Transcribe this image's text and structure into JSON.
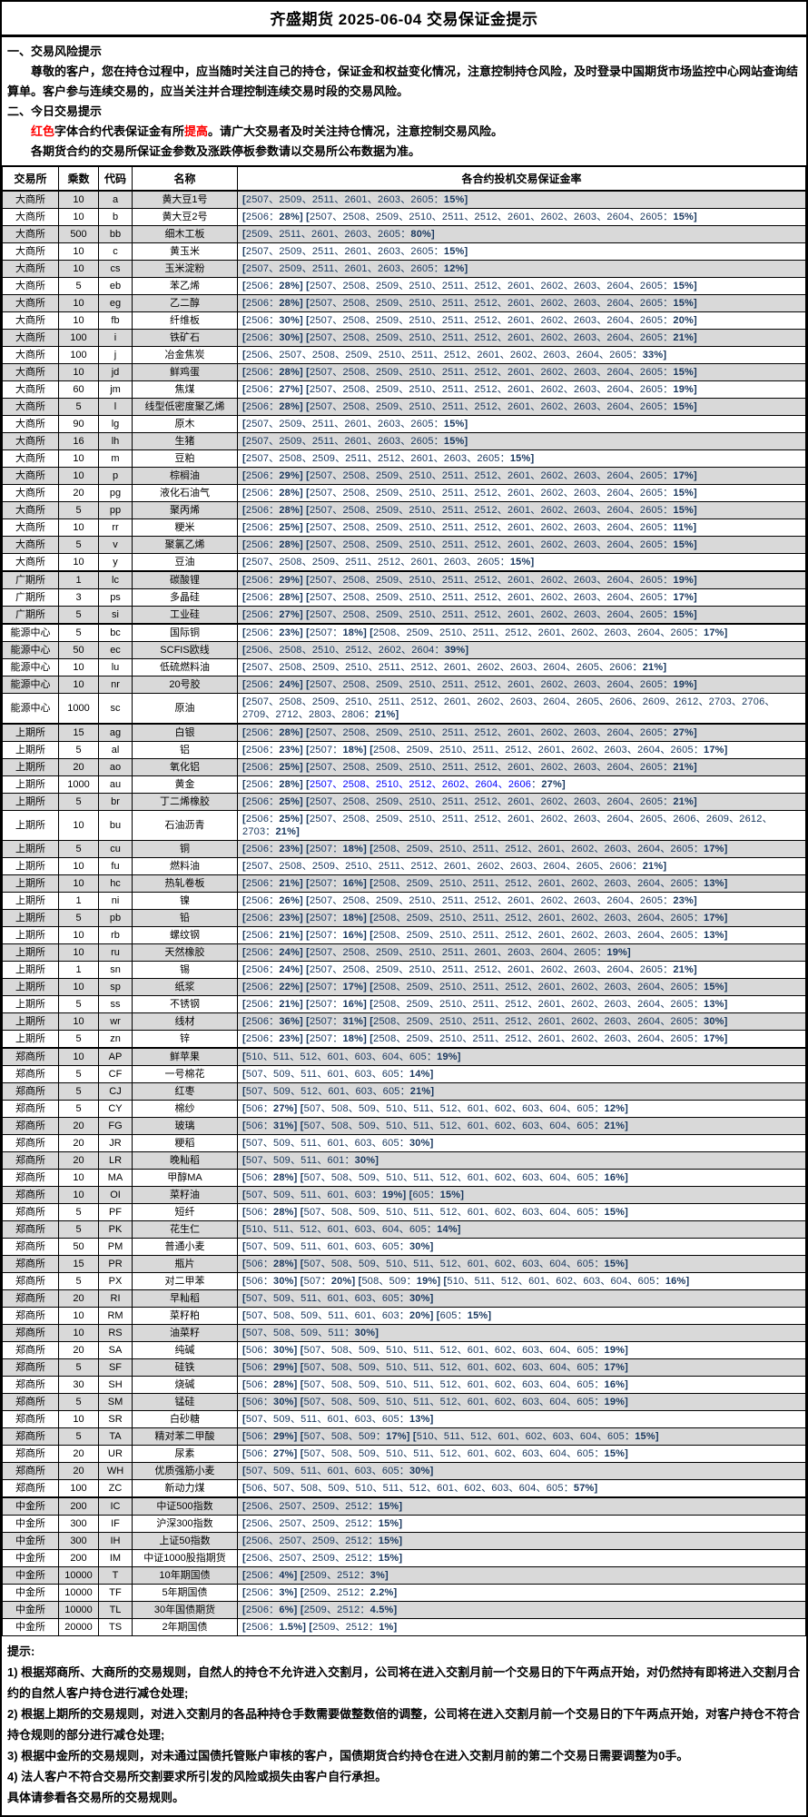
{
  "title": "齐盛期货 2025-06-04 交易保证金提示",
  "colors": {
    "navy": "#17365D",
    "red": "#FF0000",
    "blue": "#0000FF",
    "row_alt": "#D9D9D9"
  },
  "section1": {
    "heading": "一、交易风险提示",
    "body": "尊敬的客户，您在持仓过程中，应当随时关注自己的持仓，保证金和权益变化情况，注意控制持仓风险，及时登录中国期货市场监控中心网站查询结算单。客户参与连续交易的，应当关注并合理控制连续交易时段的交易风险。"
  },
  "section2": {
    "heading": "二、今日交易提示",
    "line1_segments": [
      {
        "t": "红色",
        "red": true
      },
      {
        "t": "字体合约代表保证金有所",
        "red": false
      },
      {
        "t": "提高",
        "red": true
      },
      {
        "t": "。请广大交易者及时关注持仓情况，注意控制交易风险。",
        "red": false
      }
    ],
    "line2": "各期货合约的交易所保证金参数及涨跌停板参数请以交易所公布数据为准。"
  },
  "table": {
    "headers": [
      "交易所",
      "乘数",
      "代码",
      "名称",
      "各合约投机交易保证金率"
    ],
    "rows": [
      {
        "ex": "大商所",
        "mult": "10",
        "code": "a",
        "name": "黄大豆1号",
        "rate": "[2507、2509、2511、2601、2603、2605：15%]"
      },
      {
        "ex": "大商所",
        "mult": "10",
        "code": "b",
        "name": "黄大豆2号",
        "rate": "[2506：28%]  [2507、2508、2509、2510、2511、2512、2601、2602、2603、2604、2605：15%]"
      },
      {
        "ex": "大商所",
        "mult": "500",
        "code": "bb",
        "name": "细木工板",
        "rate": "[2509、2511、2601、2603、2605：80%]"
      },
      {
        "ex": "大商所",
        "mult": "10",
        "code": "c",
        "name": "黄玉米",
        "rate": "[2507、2509、2511、2601、2603、2605：15%]"
      },
      {
        "ex": "大商所",
        "mult": "10",
        "code": "cs",
        "name": "玉米淀粉",
        "rate": "[2507、2509、2511、2601、2603、2605：12%]"
      },
      {
        "ex": "大商所",
        "mult": "5",
        "code": "eb",
        "name": "苯乙烯",
        "rate": "[2506：28%]  [2507、2508、2509、2510、2511、2512、2601、2602、2603、2604、2605：15%]"
      },
      {
        "ex": "大商所",
        "mult": "10",
        "code": "eg",
        "name": "乙二醇",
        "rate": "[2506：28%]  [2507、2508、2509、2510、2511、2512、2601、2602、2603、2604、2605：15%]"
      },
      {
        "ex": "大商所",
        "mult": "10",
        "code": "fb",
        "name": "纤维板",
        "rate": "[2506：30%]  [2507、2508、2509、2510、2511、2512、2601、2602、2603、2604、2605：20%]"
      },
      {
        "ex": "大商所",
        "mult": "100",
        "code": "i",
        "name": "铁矿石",
        "rate": "[2506：30%]  [2507、2508、2509、2510、2511、2512、2601、2602、2603、2604、2605：21%]"
      },
      {
        "ex": "大商所",
        "mult": "100",
        "code": "j",
        "name": "冶金焦炭",
        "rate": "[2506、2507、2508、2509、2510、2511、2512、2601、2602、2603、2604、2605：33%]"
      },
      {
        "ex": "大商所",
        "mult": "10",
        "code": "jd",
        "name": "鲜鸡蛋",
        "rate": "[2506：28%]  [2507、2508、2509、2510、2511、2512、2601、2602、2603、2604、2605：15%]"
      },
      {
        "ex": "大商所",
        "mult": "60",
        "code": "jm",
        "name": "焦煤",
        "rate": "[2506：27%]  [2507、2508、2509、2510、2511、2512、2601、2602、2603、2604、2605：19%]"
      },
      {
        "ex": "大商所",
        "mult": "5",
        "code": "l",
        "name": "线型低密度聚乙烯",
        "rate": "[2506：28%]  [2507、2508、2509、2510、2511、2512、2601、2602、2603、2604、2605：15%]"
      },
      {
        "ex": "大商所",
        "mult": "90",
        "code": "lg",
        "name": "原木",
        "rate": "[2507、2509、2511、2601、2603、2605：15%]"
      },
      {
        "ex": "大商所",
        "mult": "16",
        "code": "lh",
        "name": "生猪",
        "rate": "[2507、2509、2511、2601、2603、2605：15%]"
      },
      {
        "ex": "大商所",
        "mult": "10",
        "code": "m",
        "name": "豆粕",
        "rate": "[2507、2508、2509、2511、2512、2601、2603、2605：15%]"
      },
      {
        "ex": "大商所",
        "mult": "10",
        "code": "p",
        "name": "棕榈油",
        "rate": "[2506：29%]  [2507、2508、2509、2510、2511、2512、2601、2602、2603、2604、2605：17%]"
      },
      {
        "ex": "大商所",
        "mult": "20",
        "code": "pg",
        "name": "液化石油气",
        "rate": "[2506：28%]  [2507、2508、2509、2510、2511、2512、2601、2602、2603、2604、2605：15%]"
      },
      {
        "ex": "大商所",
        "mult": "5",
        "code": "pp",
        "name": "聚丙烯",
        "rate": "[2506：28%]  [2507、2508、2509、2510、2511、2512、2601、2602、2603、2604、2605：15%]"
      },
      {
        "ex": "大商所",
        "mult": "10",
        "code": "rr",
        "name": "粳米",
        "rate": "[2506：25%]  [2507、2508、2509、2510、2511、2512、2601、2602、2603、2604、2605：11%]"
      },
      {
        "ex": "大商所",
        "mult": "5",
        "code": "v",
        "name": "聚氯乙烯",
        "rate": "[2506：28%]  [2507、2508、2509、2510、2511、2512、2601、2602、2603、2604、2605：15%]"
      },
      {
        "ex": "大商所",
        "mult": "10",
        "code": "y",
        "name": "豆油",
        "rate": "[2507、2508、2509、2511、2512、2601、2603、2605：15%]"
      },
      {
        "ex": "广期所",
        "mult": "1",
        "code": "lc",
        "name": "碳酸锂",
        "rate": "[2506：29%]  [2507、2508、2509、2510、2511、2512、2601、2602、2603、2604、2605：19%]"
      },
      {
        "ex": "广期所",
        "mult": "3",
        "code": "ps",
        "name": "多晶硅",
        "rate": "[2506：28%]  [2507、2508、2509、2510、2511、2512、2601、2602、2603、2604、2605：17%]"
      },
      {
        "ex": "广期所",
        "mult": "5",
        "code": "si",
        "name": "工业硅",
        "rate": "[2506：27%]  [2507、2508、2509、2510、2511、2512、2601、2602、2603、2604、2605：15%]"
      },
      {
        "ex": "能源中心",
        "mult": "5",
        "code": "bc",
        "name": "国际铜",
        "rate": "[2506：23%]  [2507：18%]  [2508、2509、2510、2511、2512、2601、2602、2603、2604、2605：17%]"
      },
      {
        "ex": "能源中心",
        "mult": "50",
        "code": "ec",
        "name": "SCFIS欧线",
        "rate": "[2506、2508、2510、2512、2602、2604：39%]"
      },
      {
        "ex": "能源中心",
        "mult": "10",
        "code": "lu",
        "name": "低硫燃料油",
        "rate": "[2507、2508、2509、2510、2511、2512、2601、2602、2603、2604、2605、2606：21%]"
      },
      {
        "ex": "能源中心",
        "mult": "10",
        "code": "nr",
        "name": "20号胶",
        "rate": "[2506：24%]  [2507、2508、2509、2510、2511、2512、2601、2602、2603、2604、2605：19%]"
      },
      {
        "ex": "能源中心",
        "mult": "1000",
        "code": "sc",
        "name": "原油",
        "rate": "[2507、2508、2509、2510、2511、2512、2601、2602、2603、2604、2605、2606、2609、2612、2703、2706、2709、2712、2803、2806：21%]"
      },
      {
        "ex": "上期所",
        "mult": "15",
        "code": "ag",
        "name": "白银",
        "rate": "[2506：28%]  [2507、2508、2509、2510、2511、2512、2601、2602、2603、2604、2605：27%]"
      },
      {
        "ex": "上期所",
        "mult": "5",
        "code": "al",
        "name": "铝",
        "rate": "[2506：23%]  [2507：18%]  [2508、2509、2510、2511、2512、2601、2602、2603、2604、2605：17%]"
      },
      {
        "ex": "上期所",
        "mult": "20",
        "code": "ao",
        "name": "氧化铝",
        "rate": "[2506：25%]  [2507、2508、2509、2510、2511、2512、2601、2602、2603、2604、2605：21%]"
      },
      {
        "ex": "上期所",
        "mult": "1000",
        "code": "au",
        "name": "黄金",
        "rate": "[2506：28%]  [2507、2508、2510、2512、2602、2604、2606：27%]",
        "blue": "2507、2508、2510、2512、2602、2604、2606"
      },
      {
        "ex": "上期所",
        "mult": "5",
        "code": "br",
        "name": "丁二烯橡胶",
        "rate": "[2506：25%]  [2507、2508、2509、2510、2511、2512、2601、2602、2603、2604、2605：21%]"
      },
      {
        "ex": "上期所",
        "mult": "10",
        "code": "bu",
        "name": "石油沥青",
        "rate": "[2506：25%]  [2507、2508、2509、2510、2511、2512、2601、2602、2603、2604、2605、2606、2609、2612、2703：21%]"
      },
      {
        "ex": "上期所",
        "mult": "5",
        "code": "cu",
        "name": "铜",
        "rate": "[2506：23%]  [2507：18%]  [2508、2509、2510、2511、2512、2601、2602、2603、2604、2605：17%]"
      },
      {
        "ex": "上期所",
        "mult": "10",
        "code": "fu",
        "name": "燃料油",
        "rate": "[2507、2508、2509、2510、2511、2512、2601、2602、2603、2604、2605、2606：21%]"
      },
      {
        "ex": "上期所",
        "mult": "10",
        "code": "hc",
        "name": "热轧卷板",
        "rate": "[2506：21%]  [2507：16%]  [2508、2509、2510、2511、2512、2601、2602、2603、2604、2605：13%]"
      },
      {
        "ex": "上期所",
        "mult": "1",
        "code": "ni",
        "name": "镍",
        "rate": "[2506：26%]  [2507、2508、2509、2510、2511、2512、2601、2602、2603、2604、2605：23%]"
      },
      {
        "ex": "上期所",
        "mult": "5",
        "code": "pb",
        "name": "铅",
        "rate": "[2506：23%]  [2507：18%]  [2508、2509、2510、2511、2512、2601、2602、2603、2604、2605：17%]"
      },
      {
        "ex": "上期所",
        "mult": "10",
        "code": "rb",
        "name": "螺纹钢",
        "rate": "[2506：21%]  [2507：16%]  [2508、2509、2510、2511、2512、2601、2602、2603、2604、2605：13%]"
      },
      {
        "ex": "上期所",
        "mult": "10",
        "code": "ru",
        "name": "天然橡胶",
        "rate": "[2506：24%]  [2507、2508、2509、2510、2511、2601、2603、2604、2605：19%]"
      },
      {
        "ex": "上期所",
        "mult": "1",
        "code": "sn",
        "name": "锡",
        "rate": "[2506：24%]  [2507、2508、2509、2510、2511、2512、2601、2602、2603、2604、2605：21%]"
      },
      {
        "ex": "上期所",
        "mult": "10",
        "code": "sp",
        "name": "纸浆",
        "rate": "[2506：22%]  [2507：17%]  [2508、2509、2510、2511、2512、2601、2602、2603、2604、2605：15%]"
      },
      {
        "ex": "上期所",
        "mult": "5",
        "code": "ss",
        "name": "不锈钢",
        "rate": "[2506：21%]  [2507：16%]  [2508、2509、2510、2511、2512、2601、2602、2603、2604、2605：13%]"
      },
      {
        "ex": "上期所",
        "mult": "10",
        "code": "wr",
        "name": "线材",
        "rate": "[2506：36%]  [2507：31%]  [2508、2509、2510、2511、2512、2601、2602、2603、2604、2605：30%]"
      },
      {
        "ex": "上期所",
        "mult": "5",
        "code": "zn",
        "name": "锌",
        "rate": "[2506：23%]  [2507：18%]  [2508、2509、2510、2511、2512、2601、2602、2603、2604、2605：17%]"
      },
      {
        "ex": "郑商所",
        "mult": "10",
        "code": "AP",
        "name": "鲜苹果",
        "rate": "[510、511、512、601、603、604、605：19%]"
      },
      {
        "ex": "郑商所",
        "mult": "5",
        "code": "CF",
        "name": "一号棉花",
        "rate": "[507、509、511、601、603、605：14%]"
      },
      {
        "ex": "郑商所",
        "mult": "5",
        "code": "CJ",
        "name": "红枣",
        "rate": "[507、509、512、601、603、605：21%]"
      },
      {
        "ex": "郑商所",
        "mult": "5",
        "code": "CY",
        "name": "棉纱",
        "rate": "[506：27%]  [507、508、509、510、511、512、601、602、603、604、605：12%]"
      },
      {
        "ex": "郑商所",
        "mult": "20",
        "code": "FG",
        "name": "玻璃",
        "rate": "[506：31%]  [507、508、509、510、511、512、601、602、603、604、605：21%]"
      },
      {
        "ex": "郑商所",
        "mult": "20",
        "code": "JR",
        "name": "粳稻",
        "rate": "[507、509、511、601、603、605：30%]"
      },
      {
        "ex": "郑商所",
        "mult": "20",
        "code": "LR",
        "name": "晚籼稻",
        "rate": "[507、509、511、601：30%]"
      },
      {
        "ex": "郑商所",
        "mult": "10",
        "code": "MA",
        "name": "甲醇MA",
        "rate": "[506：28%]  [507、508、509、510、511、512、601、602、603、604、605：16%]"
      },
      {
        "ex": "郑商所",
        "mult": "10",
        "code": "OI",
        "name": "菜籽油",
        "rate": "[507、509、511、601、603：19%]  [605：15%]"
      },
      {
        "ex": "郑商所",
        "mult": "5",
        "code": "PF",
        "name": "短纤",
        "rate": "[506：28%]  [507、508、509、510、511、512、601、602、603、604、605：15%]"
      },
      {
        "ex": "郑商所",
        "mult": "5",
        "code": "PK",
        "name": "花生仁",
        "rate": "[510、511、512、601、603、604、605：14%]"
      },
      {
        "ex": "郑商所",
        "mult": "50",
        "code": "PM",
        "name": "普通小麦",
        "rate": "[507、509、511、601、603、605：30%]"
      },
      {
        "ex": "郑商所",
        "mult": "15",
        "code": "PR",
        "name": "瓶片",
        "rate": "[506：28%]  [507、508、509、510、511、512、601、602、603、604、605：15%]"
      },
      {
        "ex": "郑商所",
        "mult": "5",
        "code": "PX",
        "name": "对二甲苯",
        "rate": "[506：30%]  [507：20%]  [508、509：19%]  [510、511、512、601、602、603、604、605：16%]"
      },
      {
        "ex": "郑商所",
        "mult": "20",
        "code": "RI",
        "name": "早籼稻",
        "rate": "[507、509、511、601、603、605：30%]"
      },
      {
        "ex": "郑商所",
        "mult": "10",
        "code": "RM",
        "name": "菜籽粕",
        "rate": "[507、508、509、511、601、603：20%]  [605：15%]"
      },
      {
        "ex": "郑商所",
        "mult": "10",
        "code": "RS",
        "name": "油菜籽",
        "rate": "[507、508、509、511：30%]"
      },
      {
        "ex": "郑商所",
        "mult": "20",
        "code": "SA",
        "name": "纯碱",
        "rate": "[506：30%]  [507、508、509、510、511、512、601、602、603、604、605：19%]"
      },
      {
        "ex": "郑商所",
        "mult": "5",
        "code": "SF",
        "name": "硅铁",
        "rate": "[506：29%]  [507、508、509、510、511、512、601、602、603、604、605：17%]"
      },
      {
        "ex": "郑商所",
        "mult": "30",
        "code": "SH",
        "name": "烧碱",
        "rate": "[506：28%]  [507、508、509、510、511、512、601、602、603、604、605：16%]"
      },
      {
        "ex": "郑商所",
        "mult": "5",
        "code": "SM",
        "name": "锰硅",
        "rate": "[506：30%]  [507、508、509、510、511、512、601、602、603、604、605：19%]"
      },
      {
        "ex": "郑商所",
        "mult": "10",
        "code": "SR",
        "name": "白砂糖",
        "rate": "[507、509、511、601、603、605：13%]"
      },
      {
        "ex": "郑商所",
        "mult": "5",
        "code": "TA",
        "name": "精对苯二甲酸",
        "rate": "[506：29%]  [507、508、509：17%]  [510、511、512、601、602、603、604、605：15%]"
      },
      {
        "ex": "郑商所",
        "mult": "20",
        "code": "UR",
        "name": "尿素",
        "rate": "[506：27%]  [507、508、509、510、511、512、601、602、603、604、605：15%]"
      },
      {
        "ex": "郑商所",
        "mult": "20",
        "code": "WH",
        "name": "优质强筋小麦",
        "rate": "[507、509、511、601、603、605：30%]"
      },
      {
        "ex": "郑商所",
        "mult": "100",
        "code": "ZC",
        "name": "新动力煤",
        "rate": "[506、507、508、509、510、511、512、601、602、603、604、605：57%]"
      },
      {
        "ex": "中金所",
        "mult": "200",
        "code": "IC",
        "name": "中证500指数",
        "rate": "[2506、2507、2509、2512：15%]"
      },
      {
        "ex": "中金所",
        "mult": "300",
        "code": "IF",
        "name": "沪深300指数",
        "rate": "[2506、2507、2509、2512：15%]"
      },
      {
        "ex": "中金所",
        "mult": "300",
        "code": "IH",
        "name": "上证50指数",
        "rate": "[2506、2507、2509、2512：15%]"
      },
      {
        "ex": "中金所",
        "mult": "200",
        "code": "IM",
        "name": "中证1000股指期货",
        "rate": "[2506、2507、2509、2512：15%]"
      },
      {
        "ex": "中金所",
        "mult": "10000",
        "code": "T",
        "name": "10年期国债",
        "rate": "[2506：4%]  [2509、2512：3%]"
      },
      {
        "ex": "中金所",
        "mult": "10000",
        "code": "TF",
        "name": "5年期国债",
        "rate": "[2506：3%]  [2509、2512：2.2%]"
      },
      {
        "ex": "中金所",
        "mult": "10000",
        "code": "TL",
        "name": "30年国债期货",
        "rate": "[2506：6%]  [2509、2512：4.5%]"
      },
      {
        "ex": "中金所",
        "mult": "20000",
        "code": "TS",
        "name": "2年期国债",
        "rate": "[2506：1.5%]  [2509、2512：1%]"
      }
    ]
  },
  "footer": {
    "heading": "提示:",
    "notes": [
      "1) 根据郑商所、大商所的交易规则，自然人的持仓不允许进入交割月，公司将在进入交割月前一个交易日的下午两点开始，对仍然持有即将进入交割月合约的自然人客户持仓进行减仓处理;",
      "2) 根据上期所的交易规则，对进入交割月的各品种持仓手数需要做整数倍的调整，公司将在进入交割月前一个交易日的下午两点开始，对客户持仓不符合持仓规则的部分进行减仓处理;",
      "3) 根据中金所的交易规则，对未通过国债托管账户审核的客户，国债期货合约持仓在进入交割月前的第二个交易日需要调整为0手。",
      "4) 法人客户不符合交易所交割要求所引发的风险或损失由客户自行承担。"
    ],
    "closing": "具体请参看各交易所的交易规则。"
  }
}
